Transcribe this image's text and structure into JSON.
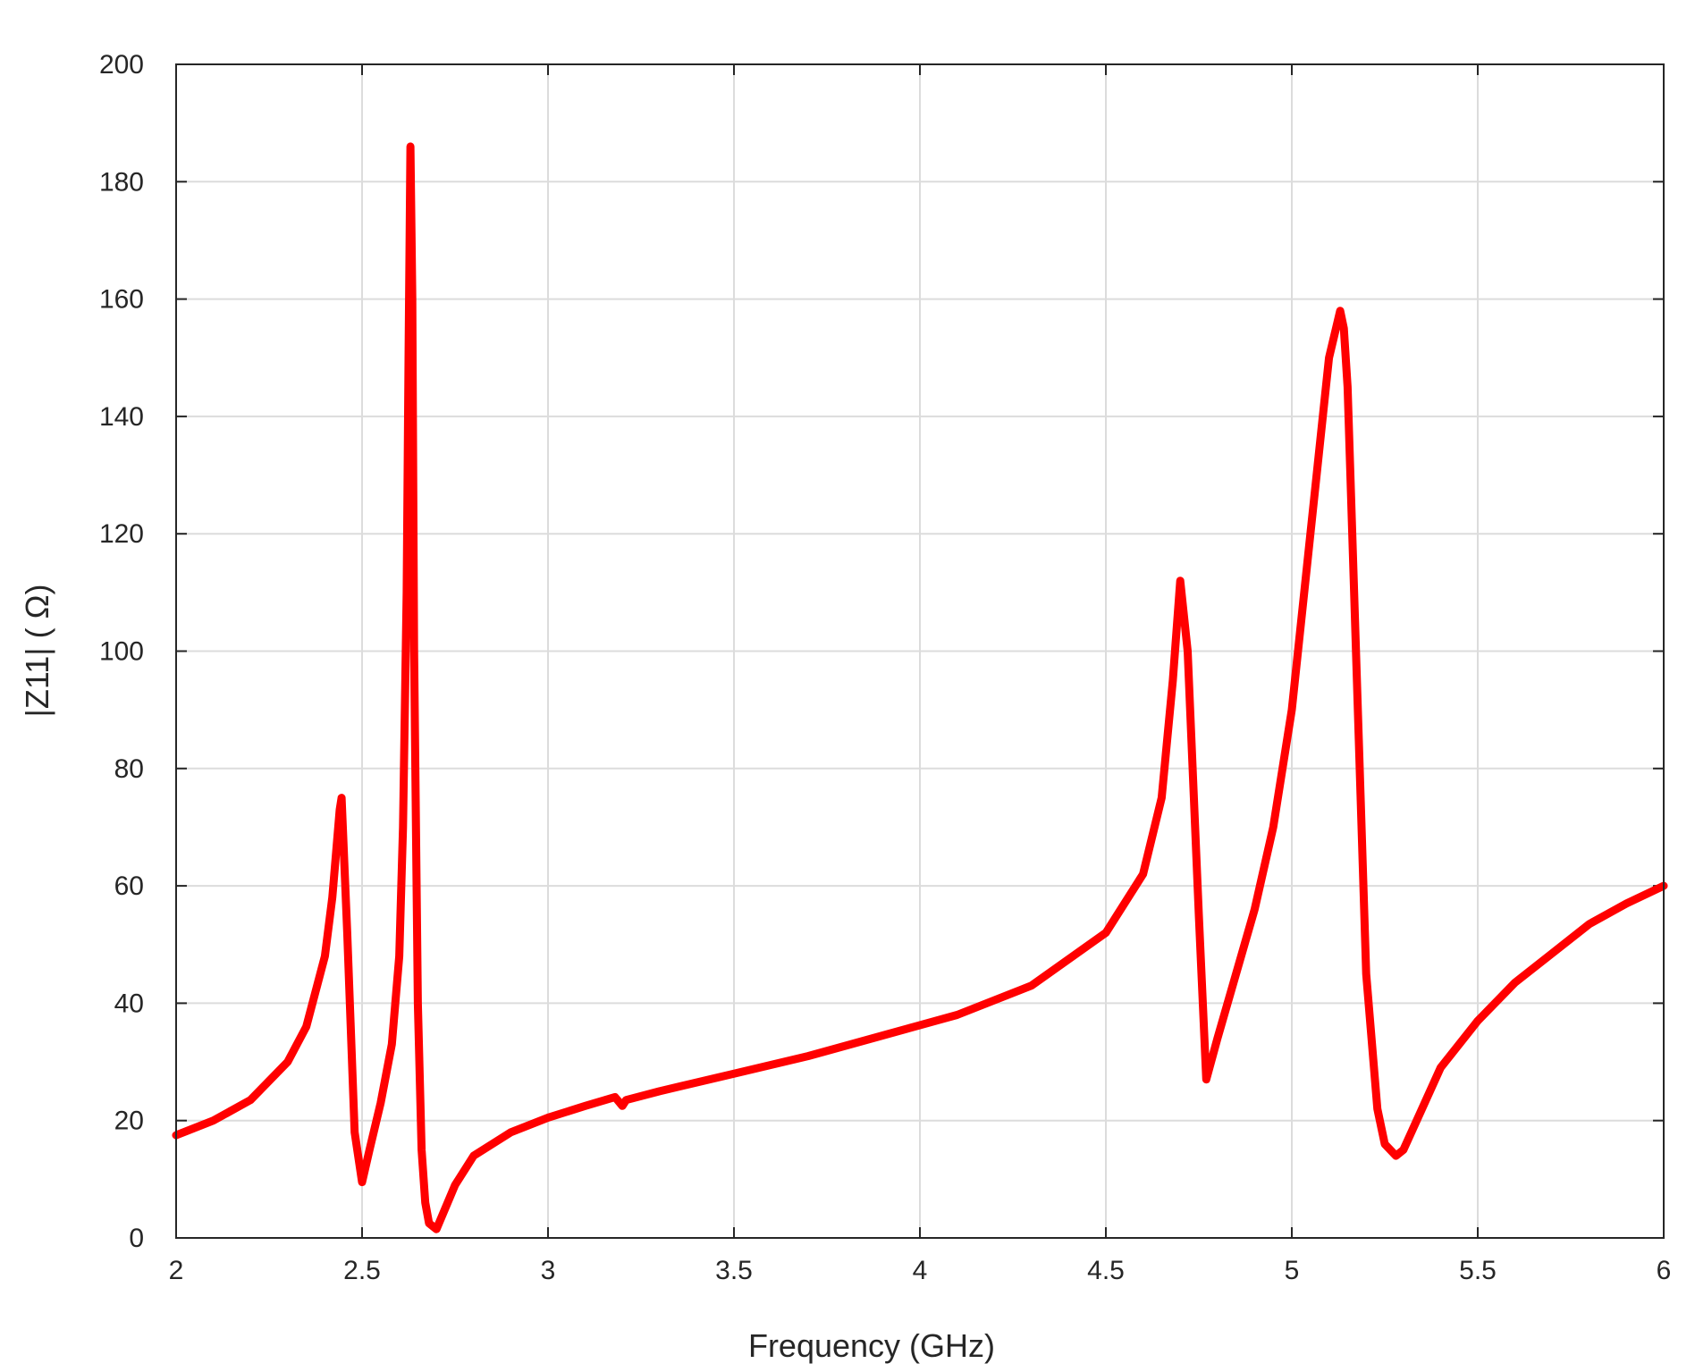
{
  "chart_data": {
    "type": "line",
    "title": "",
    "xlabel": "Frequency (GHz)",
    "ylabel": "|Z11| (  Ω)",
    "xlim": [
      2,
      6
    ],
    "ylim": [
      0,
      200
    ],
    "xticks": [
      2,
      2.5,
      3,
      3.5,
      4,
      4.5,
      5,
      5.5,
      6
    ],
    "xtick_labels": [
      "2",
      "2.5",
      "3",
      "3.5",
      "4",
      "4.5",
      "5",
      "5.5",
      "6"
    ],
    "yticks": [
      0,
      20,
      40,
      60,
      80,
      100,
      120,
      140,
      160,
      180,
      200
    ],
    "ytick_labels": [
      "0",
      "20",
      "40",
      "60",
      "80",
      "100",
      "120",
      "140",
      "160",
      "180",
      "200"
    ],
    "grid": true,
    "legend": "none",
    "series": [
      {
        "color": "#ff0000",
        "x": [
          2.0,
          2.1,
          2.2,
          2.3,
          2.35,
          2.4,
          2.42,
          2.44,
          2.445,
          2.46,
          2.48,
          2.5,
          2.52,
          2.55,
          2.58,
          2.6,
          2.61,
          2.62,
          2.625,
          2.63,
          2.635,
          2.64,
          2.65,
          2.66,
          2.67,
          2.68,
          2.7,
          2.75,
          2.8,
          2.9,
          3.0,
          3.1,
          3.18,
          3.2,
          3.21,
          3.3,
          3.5,
          3.7,
          3.9,
          4.1,
          4.3,
          4.5,
          4.6,
          4.65,
          4.68,
          4.7,
          4.72,
          4.75,
          4.77,
          4.8,
          4.85,
          4.9,
          4.95,
          5.0,
          5.05,
          5.1,
          5.13,
          5.14,
          5.15,
          5.18,
          5.2,
          5.23,
          5.25,
          5.28,
          5.3,
          5.35,
          5.4,
          5.5,
          5.6,
          5.7,
          5.8,
          5.9,
          6.0
        ],
        "y": [
          17.5,
          20,
          23.5,
          30,
          36,
          48,
          58,
          73,
          75,
          52,
          18,
          9.5,
          15,
          23,
          33,
          48,
          70,
          110,
          150,
          186,
          160,
          100,
          40,
          15,
          6,
          2.5,
          1.5,
          9,
          14,
          18,
          20.5,
          22.5,
          24,
          22.5,
          23.5,
          25,
          28,
          31,
          34.5,
          38,
          43,
          52,
          62,
          75,
          95,
          112,
          100,
          55,
          27,
          34,
          45,
          56,
          70,
          90,
          120,
          150,
          158,
          155,
          145,
          85,
          45,
          22,
          16,
          14,
          15,
          22,
          29,
          37,
          43.5,
          48.5,
          53.5,
          57,
          60
        ]
      }
    ]
  }
}
